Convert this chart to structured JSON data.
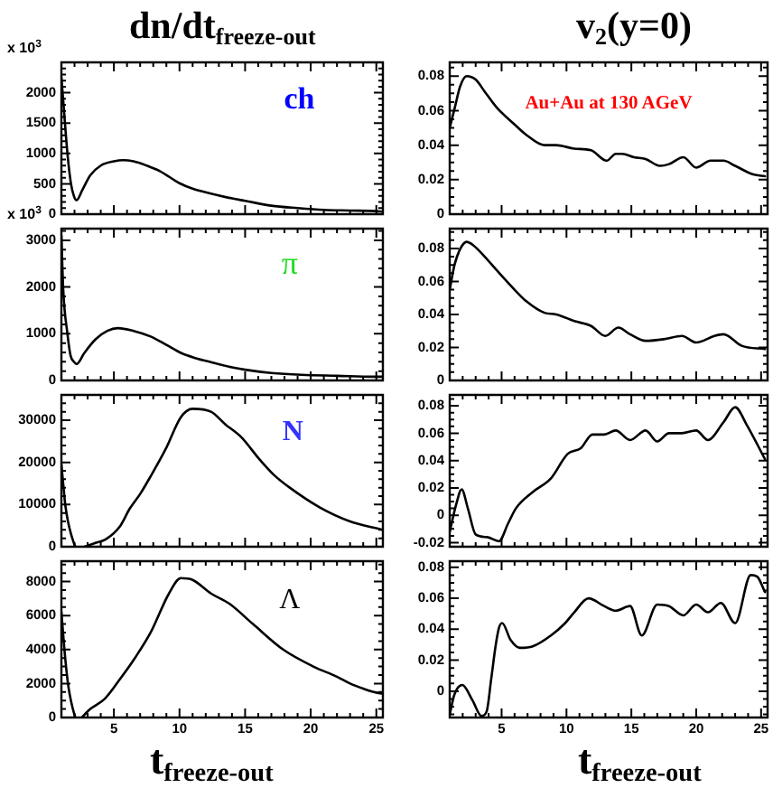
{
  "chart_data": [
    {
      "type": "line",
      "title": "dn/dt$_{freeze-out}$",
      "ylabel": "x 10$^{3}$",
      "annotations": [
        "ch"
      ],
      "color": "#000000",
      "tick_labels": "y",
      "xlim": [
        1,
        25.5
      ],
      "ylim": [
        0,
        2500
      ],
      "xticks": [
        {
          "value": 2,
          "label": null
        },
        {
          "value": 3,
          "label": null
        },
        {
          "value": 4,
          "label": null
        },
        5,
        {
          "value": 6,
          "label": null
        },
        {
          "value": 7,
          "label": null
        },
        {
          "value": 8,
          "label": null
        },
        {
          "value": 9,
          "label": null
        },
        10,
        {
          "value": 11,
          "label": null
        },
        {
          "value": 12,
          "label": null
        },
        {
          "value": 13,
          "label": null
        },
        {
          "value": 14,
          "label": null
        },
        15,
        {
          "value": 16,
          "label": null
        },
        {
          "value": 17,
          "label": null
        },
        {
          "value": 18,
          "label": null
        },
        {
          "value": 19,
          "label": null
        },
        20,
        {
          "value": 21,
          "label": null
        },
        {
          "value": 22,
          "label": null
        },
        {
          "value": 23,
          "label": null
        },
        {
          "value": 24,
          "label": null
        },
        25
      ],
      "yticks": [
        0,
        {
          "value": 100,
          "label": null
        },
        {
          "value": 200,
          "label": null
        },
        {
          "value": 300,
          "label": null
        },
        {
          "value": 400,
          "label": null
        },
        500,
        {
          "value": 600,
          "label": null
        },
        {
          "value": 700,
          "label": null
        },
        {
          "value": 800,
          "label": null
        },
        {
          "value": 900,
          "label": null
        },
        1000,
        {
          "value": 1100,
          "label": null
        },
        {
          "value": 1200,
          "label": null
        },
        {
          "value": 1300,
          "label": null
        },
        {
          "value": 1400,
          "label": null
        },
        1500,
        {
          "value": 1600,
          "label": null
        },
        {
          "value": 1700,
          "label": null
        },
        {
          "value": 1800,
          "label": null
        },
        {
          "value": 1900,
          "label": null
        },
        2000,
        {
          "value": 2100,
          "label": null
        },
        {
          "value": 2200,
          "label": null
        },
        {
          "value": 2300,
          "label": null
        },
        {
          "value": 2400,
          "label": null
        }
      ],
      "x": [
        1.0,
        1.2,
        1.46,
        1.73,
        1.95,
        2.15,
        2.6,
        3.2,
        4.0,
        5.0,
        5.7,
        6.5,
        7.5,
        8.5,
        10,
        11,
        12.4,
        14,
        15,
        17,
        19,
        21,
        23,
        25,
        25.5
      ],
      "values": [
        2250,
        1700,
        1000,
        500,
        300,
        230,
        400,
        640,
        800,
        870,
        890,
        870,
        800,
        710,
        510,
        420,
        340,
        260,
        220,
        140,
        100,
        70,
        60,
        50,
        40
      ]
    },
    {
      "type": "line",
      "title": "v$_{2}$(y=0)",
      "annotations": [
        "Au+Au at 130 AGeV"
      ],
      "color": "#000000",
      "tick_labels": "y",
      "xlim": [
        1,
        25.5
      ],
      "ylim": [
        0,
        0.088
      ],
      "xticks": [
        {
          "value": 2,
          "label": null
        },
        {
          "value": 3,
          "label": null
        },
        {
          "value": 4,
          "label": null
        },
        5,
        {
          "value": 6,
          "label": null
        },
        {
          "value": 7,
          "label": null
        },
        {
          "value": 8,
          "label": null
        },
        {
          "value": 9,
          "label": null
        },
        10,
        {
          "value": 11,
          "label": null
        },
        {
          "value": 12,
          "label": null
        },
        {
          "value": 13,
          "label": null
        },
        {
          "value": 14,
          "label": null
        },
        15,
        {
          "value": 16,
          "label": null
        },
        {
          "value": 17,
          "label": null
        },
        {
          "value": 18,
          "label": null
        },
        {
          "value": 19,
          "label": null
        },
        20,
        {
          "value": 21,
          "label": null
        },
        {
          "value": 22,
          "label": null
        },
        {
          "value": 23,
          "label": null
        },
        {
          "value": 24,
          "label": null
        },
        25
      ],
      "yticks": [
        0,
        {
          "value": 0.005,
          "label": null
        },
        {
          "value": 0.01,
          "label": null
        },
        {
          "value": 0.015,
          "label": null
        },
        0.02,
        {
          "value": 0.025,
          "label": null
        },
        {
          "value": 0.03,
          "label": null
        },
        {
          "value": 0.035,
          "label": null
        },
        0.04,
        {
          "value": 0.045,
          "label": null
        },
        {
          "value": 0.05,
          "label": null
        },
        {
          "value": 0.055,
          "label": null
        },
        0.06,
        {
          "value": 0.065,
          "label": null
        },
        {
          "value": 0.07,
          "label": null
        },
        {
          "value": 0.075,
          "label": null
        },
        0.08,
        {
          "value": 0.085,
          "label": null
        }
      ],
      "x": [
        1.0,
        1.4,
        1.8,
        2.3,
        3.0,
        3.7,
        4.6,
        6.0,
        6.9,
        8.3,
        9.2,
        10.6,
        11.9,
        13.1,
        13.8,
        14.3,
        15.2,
        16.1,
        17.2,
        17.9,
        19.0,
        20.0,
        21.1,
        22.1,
        23.0,
        24.4,
        25.3
      ],
      "values": [
        0.05,
        0.062,
        0.074,
        0.08,
        0.078,
        0.071,
        0.062,
        0.052,
        0.046,
        0.04,
        0.04,
        0.038,
        0.037,
        0.031,
        0.035,
        0.035,
        0.033,
        0.032,
        0.028,
        0.029,
        0.033,
        0.027,
        0.031,
        0.031,
        0.028,
        0.023,
        0.022
      ]
    },
    {
      "type": "line",
      "ylabel": "x 10$^{3}$",
      "annotations": [
        "π"
      ],
      "color": "#000000",
      "tick_labels": "y",
      "xlim": [
        1,
        25.5
      ],
      "ylim": [
        0,
        3250
      ],
      "xticks": [
        {
          "value": 2,
          "label": null
        },
        {
          "value": 3,
          "label": null
        },
        {
          "value": 4,
          "label": null
        },
        5,
        {
          "value": 6,
          "label": null
        },
        {
          "value": 7,
          "label": null
        },
        {
          "value": 8,
          "label": null
        },
        {
          "value": 9,
          "label": null
        },
        10,
        {
          "value": 11,
          "label": null
        },
        {
          "value": 12,
          "label": null
        },
        {
          "value": 13,
          "label": null
        },
        {
          "value": 14,
          "label": null
        },
        15,
        {
          "value": 16,
          "label": null
        },
        {
          "value": 17,
          "label": null
        },
        {
          "value": 18,
          "label": null
        },
        {
          "value": 19,
          "label": null
        },
        20,
        {
          "value": 21,
          "label": null
        },
        {
          "value": 22,
          "label": null
        },
        {
          "value": 23,
          "label": null
        },
        {
          "value": 24,
          "label": null
        },
        25
      ],
      "yticks": [
        0,
        {
          "value": 200,
          "label": null
        },
        {
          "value": 400,
          "label": null
        },
        {
          "value": 600,
          "label": null
        },
        {
          "value": 800,
          "label": null
        },
        1000,
        {
          "value": 1200,
          "label": null
        },
        {
          "value": 1400,
          "label": null
        },
        {
          "value": 1600,
          "label": null
        },
        {
          "value": 1800,
          "label": null
        },
        2000,
        {
          "value": 2200,
          "label": null
        },
        {
          "value": 2400,
          "label": null
        },
        {
          "value": 2600,
          "label": null
        },
        {
          "value": 2800,
          "label": null
        },
        3000,
        {
          "value": 3200,
          "label": null
        }
      ],
      "x": [
        1.0,
        1.14,
        1.46,
        1.7,
        1.95,
        2.15,
        2.75,
        3.6,
        4.5,
        5.3,
        6.5,
        7.8,
        9,
        10.1,
        11.2,
        12.4,
        14,
        15,
        17,
        19.3,
        22,
        24.8,
        25.5
      ],
      "values": [
        3100,
        1940,
        1000,
        530,
        400,
        350,
        590,
        880,
        1060,
        1120,
        1060,
        940,
        760,
        590,
        480,
        390,
        280,
        230,
        160,
        120,
        100,
        80,
        80
      ]
    },
    {
      "type": "line",
      "color": "#000000",
      "tick_labels": "y",
      "xlim": [
        1,
        25.5
      ],
      "ylim": [
        0,
        0.092
      ],
      "xticks": [
        {
          "value": 2,
          "label": null
        },
        {
          "value": 3,
          "label": null
        },
        {
          "value": 4,
          "label": null
        },
        5,
        {
          "value": 6,
          "label": null
        },
        {
          "value": 7,
          "label": null
        },
        {
          "value": 8,
          "label": null
        },
        {
          "value": 9,
          "label": null
        },
        10,
        {
          "value": 11,
          "label": null
        },
        {
          "value": 12,
          "label": null
        },
        {
          "value": 13,
          "label": null
        },
        {
          "value": 14,
          "label": null
        },
        15,
        {
          "value": 16,
          "label": null
        },
        {
          "value": 17,
          "label": null
        },
        {
          "value": 18,
          "label": null
        },
        {
          "value": 19,
          "label": null
        },
        20,
        {
          "value": 21,
          "label": null
        },
        {
          "value": 22,
          "label": null
        },
        {
          "value": 23,
          "label": null
        },
        {
          "value": 24,
          "label": null
        },
        25
      ],
      "yticks": [
        0,
        {
          "value": 0.005,
          "label": null
        },
        {
          "value": 0.01,
          "label": null
        },
        {
          "value": 0.015,
          "label": null
        },
        0.02,
        {
          "value": 0.025,
          "label": null
        },
        {
          "value": 0.03,
          "label": null
        },
        {
          "value": 0.035,
          "label": null
        },
        0.04,
        {
          "value": 0.045,
          "label": null
        },
        {
          "value": 0.05,
          "label": null
        },
        {
          "value": 0.055,
          "label": null
        },
        0.06,
        {
          "value": 0.065,
          "label": null
        },
        {
          "value": 0.07,
          "label": null
        },
        {
          "value": 0.075,
          "label": null
        },
        0.08,
        {
          "value": 0.085,
          "label": null
        },
        {
          "value": 0.09,
          "label": null
        }
      ],
      "x": [
        1.0,
        1.37,
        1.83,
        2.3,
        2.8,
        3.7,
        4.6,
        6.0,
        6.9,
        8.3,
        9.2,
        10.6,
        11.9,
        13.0,
        14.0,
        14.9,
        16.1,
        17.5,
        18.9,
        20.0,
        21.4,
        22.1,
        23.5,
        25.3
      ],
      "values": [
        0.055,
        0.07,
        0.08,
        0.084,
        0.082,
        0.075,
        0.067,
        0.055,
        0.048,
        0.041,
        0.04,
        0.036,
        0.033,
        0.027,
        0.032,
        0.028,
        0.024,
        0.025,
        0.027,
        0.023,
        0.027,
        0.028,
        0.021,
        0.019
      ]
    },
    {
      "type": "line",
      "annotations": [
        "N"
      ],
      "color": "#000000",
      "tick_labels": "y",
      "xlim": [
        1,
        25.5
      ],
      "ylim": [
        0,
        36000
      ],
      "xticks": [
        {
          "value": 2,
          "label": null
        },
        {
          "value": 3,
          "label": null
        },
        {
          "value": 4,
          "label": null
        },
        5,
        {
          "value": 6,
          "label": null
        },
        {
          "value": 7,
          "label": null
        },
        {
          "value": 8,
          "label": null
        },
        {
          "value": 9,
          "label": null
        },
        10,
        {
          "value": 11,
          "label": null
        },
        {
          "value": 12,
          "label": null
        },
        {
          "value": 13,
          "label": null
        },
        {
          "value": 14,
          "label": null
        },
        15,
        {
          "value": 16,
          "label": null
        },
        {
          "value": 17,
          "label": null
        },
        {
          "value": 18,
          "label": null
        },
        {
          "value": 19,
          "label": null
        },
        20,
        {
          "value": 21,
          "label": null
        },
        {
          "value": 22,
          "label": null
        },
        {
          "value": 23,
          "label": null
        },
        {
          "value": 24,
          "label": null
        },
        25
      ],
      "yticks": [
        0,
        {
          "value": 2000,
          "label": null
        },
        {
          "value": 4000,
          "label": null
        },
        {
          "value": 6000,
          "label": null
        },
        {
          "value": 8000,
          "label": null
        },
        10000,
        {
          "value": 12000,
          "label": null
        },
        {
          "value": 14000,
          "label": null
        },
        {
          "value": 16000,
          "label": null
        },
        {
          "value": 18000,
          "label": null
        },
        20000,
        {
          "value": 22000,
          "label": null
        },
        {
          "value": 24000,
          "label": null
        },
        {
          "value": 26000,
          "label": null
        },
        {
          "value": 28000,
          "label": null
        },
        30000,
        {
          "value": 32000,
          "label": null
        },
        {
          "value": 34000,
          "label": null
        }
      ],
      "x": [
        1.0,
        1.15,
        1.3,
        1.5,
        1.75,
        2.05,
        2.4,
        2.75,
        3.6,
        4.4,
        5.5,
        6.2,
        7,
        7.8,
        9,
        10.1,
        11,
        12.4,
        13.5,
        14.7,
        16.1,
        17.2,
        18.4,
        20.7,
        23,
        25.5
      ],
      "values": [
        19500,
        14500,
        9800,
        6000,
        2800,
        0,
        null,
        0,
        900,
        1800,
        5000,
        9000,
        12500,
        16700,
        23500,
        30700,
        32700,
        32000,
        29000,
        26000,
        20700,
        17000,
        14000,
        9300,
        6000,
        4000
      ]
    },
    {
      "type": "line",
      "color": "#000000",
      "tick_labels": "y",
      "xlim": [
        1,
        25.5
      ],
      "ylim": [
        -0.023,
        0.088
      ],
      "xticks": [
        {
          "value": 2,
          "label": null
        },
        {
          "value": 3,
          "label": null
        },
        {
          "value": 4,
          "label": null
        },
        5,
        {
          "value": 6,
          "label": null
        },
        {
          "value": 7,
          "label": null
        },
        {
          "value": 8,
          "label": null
        },
        {
          "value": 9,
          "label": null
        },
        10,
        {
          "value": 11,
          "label": null
        },
        {
          "value": 12,
          "label": null
        },
        {
          "value": 13,
          "label": null
        },
        {
          "value": 14,
          "label": null
        },
        15,
        {
          "value": 16,
          "label": null
        },
        {
          "value": 17,
          "label": null
        },
        {
          "value": 18,
          "label": null
        },
        {
          "value": 19,
          "label": null
        },
        20,
        {
          "value": 21,
          "label": null
        },
        {
          "value": 22,
          "label": null
        },
        {
          "value": 23,
          "label": null
        },
        {
          "value": 24,
          "label": null
        },
        25
      ],
      "yticks": [
        -0.02,
        {
          "value": -0.015,
          "label": null
        },
        {
          "value": -0.01,
          "label": null
        },
        {
          "value": -0.005,
          "label": null
        },
        0,
        {
          "value": 0.005,
          "label": null
        },
        {
          "value": 0.01,
          "label": null
        },
        {
          "value": 0.015,
          "label": null
        },
        0.02,
        {
          "value": 0.025,
          "label": null
        },
        {
          "value": 0.03,
          "label": null
        },
        {
          "value": 0.035,
          "label": null
        },
        0.04,
        {
          "value": 0.045,
          "label": null
        },
        {
          "value": 0.05,
          "label": null
        },
        {
          "value": 0.055,
          "label": null
        },
        0.06,
        {
          "value": 0.065,
          "label": null
        },
        {
          "value": 0.07,
          "label": null
        },
        {
          "value": 0.075,
          "label": null
        },
        0.08,
        {
          "value": 0.085,
          "label": null
        }
      ],
      "x": [
        1.0,
        1.5,
        1.92,
        2.4,
        3.0,
        3.9,
        4.8,
        5.5,
        6.1,
        7.4,
        8.8,
        10.1,
        11.1,
        12.0,
        12.9,
        13.8,
        14.9,
        16.1,
        17.0,
        17.9,
        18.9,
        20.0,
        20.9,
        22.1,
        23.0,
        23.9,
        25.3
      ],
      "values": [
        -0.012,
        0.008,
        0.019,
        0.005,
        -0.014,
        -0.016,
        -0.019,
        -0.006,
        0.005,
        0.017,
        0.027,
        0.045,
        0.049,
        0.059,
        0.059,
        0.062,
        0.055,
        0.062,
        0.054,
        0.06,
        0.06,
        0.062,
        0.055,
        0.068,
        0.079,
        0.066,
        0.041
      ]
    },
    {
      "type": "line",
      "xlabel": "t$_{freeze-out}$",
      "annotations": [
        "Λ"
      ],
      "color": "#000000",
      "xlim": [
        1,
        25.5
      ],
      "ylim": [
        0,
        9200
      ],
      "xticks": [
        {
          "value": 2,
          "label": null
        },
        {
          "value": 3,
          "label": null
        },
        {
          "value": 4,
          "label": null
        },
        5,
        {
          "value": 6,
          "label": null
        },
        {
          "value": 7,
          "label": null
        },
        {
          "value": 8,
          "label": null
        },
        {
          "value": 9,
          "label": null
        },
        10,
        {
          "value": 11,
          "label": null
        },
        {
          "value": 12,
          "label": null
        },
        {
          "value": 13,
          "label": null
        },
        {
          "value": 14,
          "label": null
        },
        15,
        {
          "value": 16,
          "label": null
        },
        {
          "value": 17,
          "label": null
        },
        {
          "value": 18,
          "label": null
        },
        {
          "value": 19,
          "label": null
        },
        20,
        {
          "value": 21,
          "label": null
        },
        {
          "value": 22,
          "label": null
        },
        {
          "value": 23,
          "label": null
        },
        {
          "value": 24,
          "label": null
        },
        25
      ],
      "yticks": [
        0,
        {
          "value": 500,
          "label": null
        },
        {
          "value": 1000,
          "label": null
        },
        {
          "value": 1500,
          "label": null
        },
        2000,
        {
          "value": 2500,
          "label": null
        },
        {
          "value": 3000,
          "label": null
        },
        {
          "value": 3500,
          "label": null
        },
        4000,
        {
          "value": 4500,
          "label": null
        },
        {
          "value": 5000,
          "label": null
        },
        {
          "value": 5500,
          "label": null
        },
        6000,
        {
          "value": 6500,
          "label": null
        },
        {
          "value": 7000,
          "label": null
        },
        {
          "value": 7500,
          "label": null
        },
        8000,
        {
          "value": 8500,
          "label": null
        },
        {
          "value": 9000,
          "label": null
        }
      ],
      "x": [
        1.0,
        1.23,
        1.5,
        1.75,
        2.05,
        2.3,
        2.55,
        3.2,
        4.3,
        5.5,
        6.6,
        7.8,
        9.2,
        10.1,
        11,
        12.4,
        13.8,
        15.6,
        17.9,
        20.2,
        22,
        23,
        24,
        24.8,
        25.5
      ],
      "values": [
        6200,
        4000,
        2000,
        900,
        0,
        null,
        0,
        500,
        1100,
        2300,
        3500,
        5000,
        7300,
        8200,
        8100,
        7300,
        6700,
        5500,
        4000,
        3000,
        2400,
        2000,
        1700,
        1500,
        1400
      ]
    },
    {
      "type": "line",
      "xlabel": "t$_{freeze-out}$",
      "color": "#000000",
      "xlim": [
        1,
        25.5
      ],
      "ylim": [
        -0.017,
        0.084
      ],
      "xticks": [
        {
          "value": 2,
          "label": null
        },
        {
          "value": 3,
          "label": null
        },
        {
          "value": 4,
          "label": null
        },
        5,
        {
          "value": 6,
          "label": null
        },
        {
          "value": 7,
          "label": null
        },
        {
          "value": 8,
          "label": null
        },
        {
          "value": 9,
          "label": null
        },
        10,
        {
          "value": 11,
          "label": null
        },
        {
          "value": 12,
          "label": null
        },
        {
          "value": 13,
          "label": null
        },
        {
          "value": 14,
          "label": null
        },
        15,
        {
          "value": 16,
          "label": null
        },
        {
          "value": 17,
          "label": null
        },
        {
          "value": 18,
          "label": null
        },
        {
          "value": 19,
          "label": null
        },
        20,
        {
          "value": 21,
          "label": null
        },
        {
          "value": 22,
          "label": null
        },
        {
          "value": 23,
          "label": null
        },
        {
          "value": 24,
          "label": null
        },
        25
      ],
      "yticks": [
        {
          "value": -0.015,
          "label": null
        },
        {
          "value": -0.01,
          "label": null
        },
        {
          "value": -0.005,
          "label": null
        },
        0,
        {
          "value": 0.005,
          "label": null
        },
        {
          "value": 0.01,
          "label": null
        },
        {
          "value": 0.015,
          "label": null
        },
        0.02,
        {
          "value": 0.025,
          "label": null
        },
        {
          "value": 0.03,
          "label": null
        },
        {
          "value": 0.035,
          "label": null
        },
        0.04,
        {
          "value": 0.045,
          "label": null
        },
        {
          "value": 0.05,
          "label": null
        },
        {
          "value": 0.055,
          "label": null
        },
        0.06,
        {
          "value": 0.065,
          "label": null
        },
        {
          "value": 0.07,
          "label": null
        },
        {
          "value": 0.075,
          "label": null
        },
        0.08
      ],
      "x": [
        1.0,
        1.37,
        1.97,
        2.76,
        3.45,
        3.85,
        4.2,
        4.55,
        4.8,
        5.04,
        5.7,
        6.4,
        7.4,
        8.8,
        9.9,
        10.6,
        11.7,
        12.9,
        13.8,
        14.9,
        15.8,
        17.0,
        17.9,
        19.0,
        20.0,
        20.9,
        21.9,
        23.0,
        24.2,
        24.7,
        25.3
      ],
      "values": [
        -0.015,
        -0.002,
        0.004,
        -0.006,
        -0.016,
        -0.013,
        0.008,
        0.03,
        0.041,
        0.044,
        0.033,
        0.028,
        0.029,
        0.036,
        0.044,
        0.051,
        0.06,
        0.055,
        0.052,
        0.055,
        0.036,
        0.056,
        0.055,
        0.049,
        0.056,
        0.051,
        0.057,
        0.044,
        0.075,
        0.074,
        0.064
      ]
    }
  ]
}
